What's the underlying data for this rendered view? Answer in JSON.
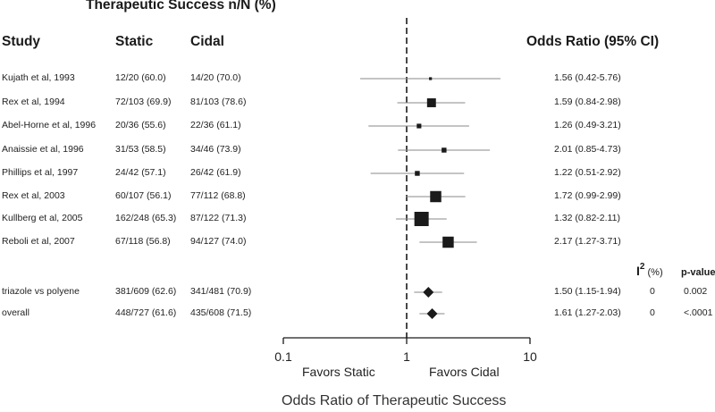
{
  "header": {
    "supertitle": "Therapeutic Success n/N (%)",
    "study": "Study",
    "static": "Static",
    "cidal": "Cidal",
    "or": "Odds Ratio (95% CI)",
    "i2_main": "I",
    "i2_sup": "2",
    "i2_unit": "(%)",
    "pvalue": "p-value"
  },
  "chart_data": {
    "type": "forest",
    "title": "Therapeutic Success n/N (%)",
    "xlabel": "Odds Ratio of Therapeutic Success",
    "xscale": "log",
    "xlim": [
      0.1,
      10
    ],
    "xticks": [
      0.1,
      1,
      10
    ],
    "xtick_labels": [
      "0.1",
      "1",
      "10"
    ],
    "reference_line": 1,
    "favors_left": "Favors Static",
    "favors_right": "Favors Cidal",
    "columns": [
      "Study",
      "Static",
      "Cidal",
      "Odds Ratio (95% CI)"
    ],
    "studies": [
      {
        "study": "Kujath et al, 1993",
        "static": "12/20 (60.0)",
        "cidal": "14/20 (70.0)",
        "or_text": "1.56 (0.42-5.76)",
        "or": 1.56,
        "lo": 0.42,
        "hi": 5.76,
        "weight": 0.2
      },
      {
        "study": "Rex et al, 1994",
        "static": "72/103 (69.9)",
        "cidal": "81/103 (78.6)",
        "or_text": "1.59 (0.84-2.98)",
        "or": 1.59,
        "lo": 0.84,
        "hi": 2.98,
        "weight": 0.62
      },
      {
        "study": "Abel-Horne et al, 1996",
        "static": "20/36 (55.6)",
        "cidal": "22/36 (61.1)",
        "or_text": "1.26 (0.49-3.21)",
        "or": 1.26,
        "lo": 0.49,
        "hi": 3.21,
        "weight": 0.32
      },
      {
        "study": "Anaissie et al, 1996",
        "static": "31/53 (58.5)",
        "cidal": "34/46 (73.9)",
        "or_text": "2.01 (0.85-4.73)",
        "or": 2.01,
        "lo": 0.85,
        "hi": 4.73,
        "weight": 0.34
      },
      {
        "study": "Phillips et al, 1997",
        "static": "24/42 (57.1)",
        "cidal": "26/42 (61.9)",
        "or_text": "1.22 (0.51-2.92)",
        "or": 1.22,
        "lo": 0.51,
        "hi": 2.92,
        "weight": 0.34
      },
      {
        "study": "Rex et al, 2003",
        "static": "60/107 (56.1)",
        "cidal": "77/112 (68.8)",
        "or_text": "1.72 (0.99-2.99)",
        "or": 1.72,
        "lo": 0.99,
        "hi": 2.99,
        "weight": 0.78
      },
      {
        "study": "Kullberg et al, 2005",
        "static": "162/248 (65.3)",
        "cidal": "87/122 (71.3)",
        "or_text": "1.32 (0.82-2.11)",
        "or": 1.32,
        "lo": 0.82,
        "hi": 2.11,
        "weight": 1.0
      },
      {
        "study": "Reboli et al, 2007",
        "static": "67/118 (56.8)",
        "cidal": "94/127 (74.0)",
        "or_text": "2.17 (1.27-3.71)",
        "or": 2.17,
        "lo": 1.27,
        "hi": 3.71,
        "weight": 0.78
      }
    ],
    "summaries": [
      {
        "label": "triazole vs polyene",
        "static": "381/609 (62.6)",
        "cidal": "341/481 (70.9)",
        "or_text": "1.50 (1.15-1.94)",
        "or": 1.5,
        "lo": 1.15,
        "hi": 1.94,
        "i2": "0",
        "pvalue": "0.002"
      },
      {
        "label": "overall",
        "static": "448/727 (61.6)",
        "cidal": "435/608 (71.5)",
        "or_text": "1.61 (1.27-2.03)",
        "or": 1.61,
        "lo": 1.27,
        "hi": 2.03,
        "i2": "0",
        "pvalue": "<.0001"
      }
    ],
    "grid": false,
    "colors": {
      "marker": "#1a1a1a",
      "ci_line": "#8a8a8a",
      "axis": "#1a1a1a",
      "ref_line": "#1a1a1a"
    }
  }
}
